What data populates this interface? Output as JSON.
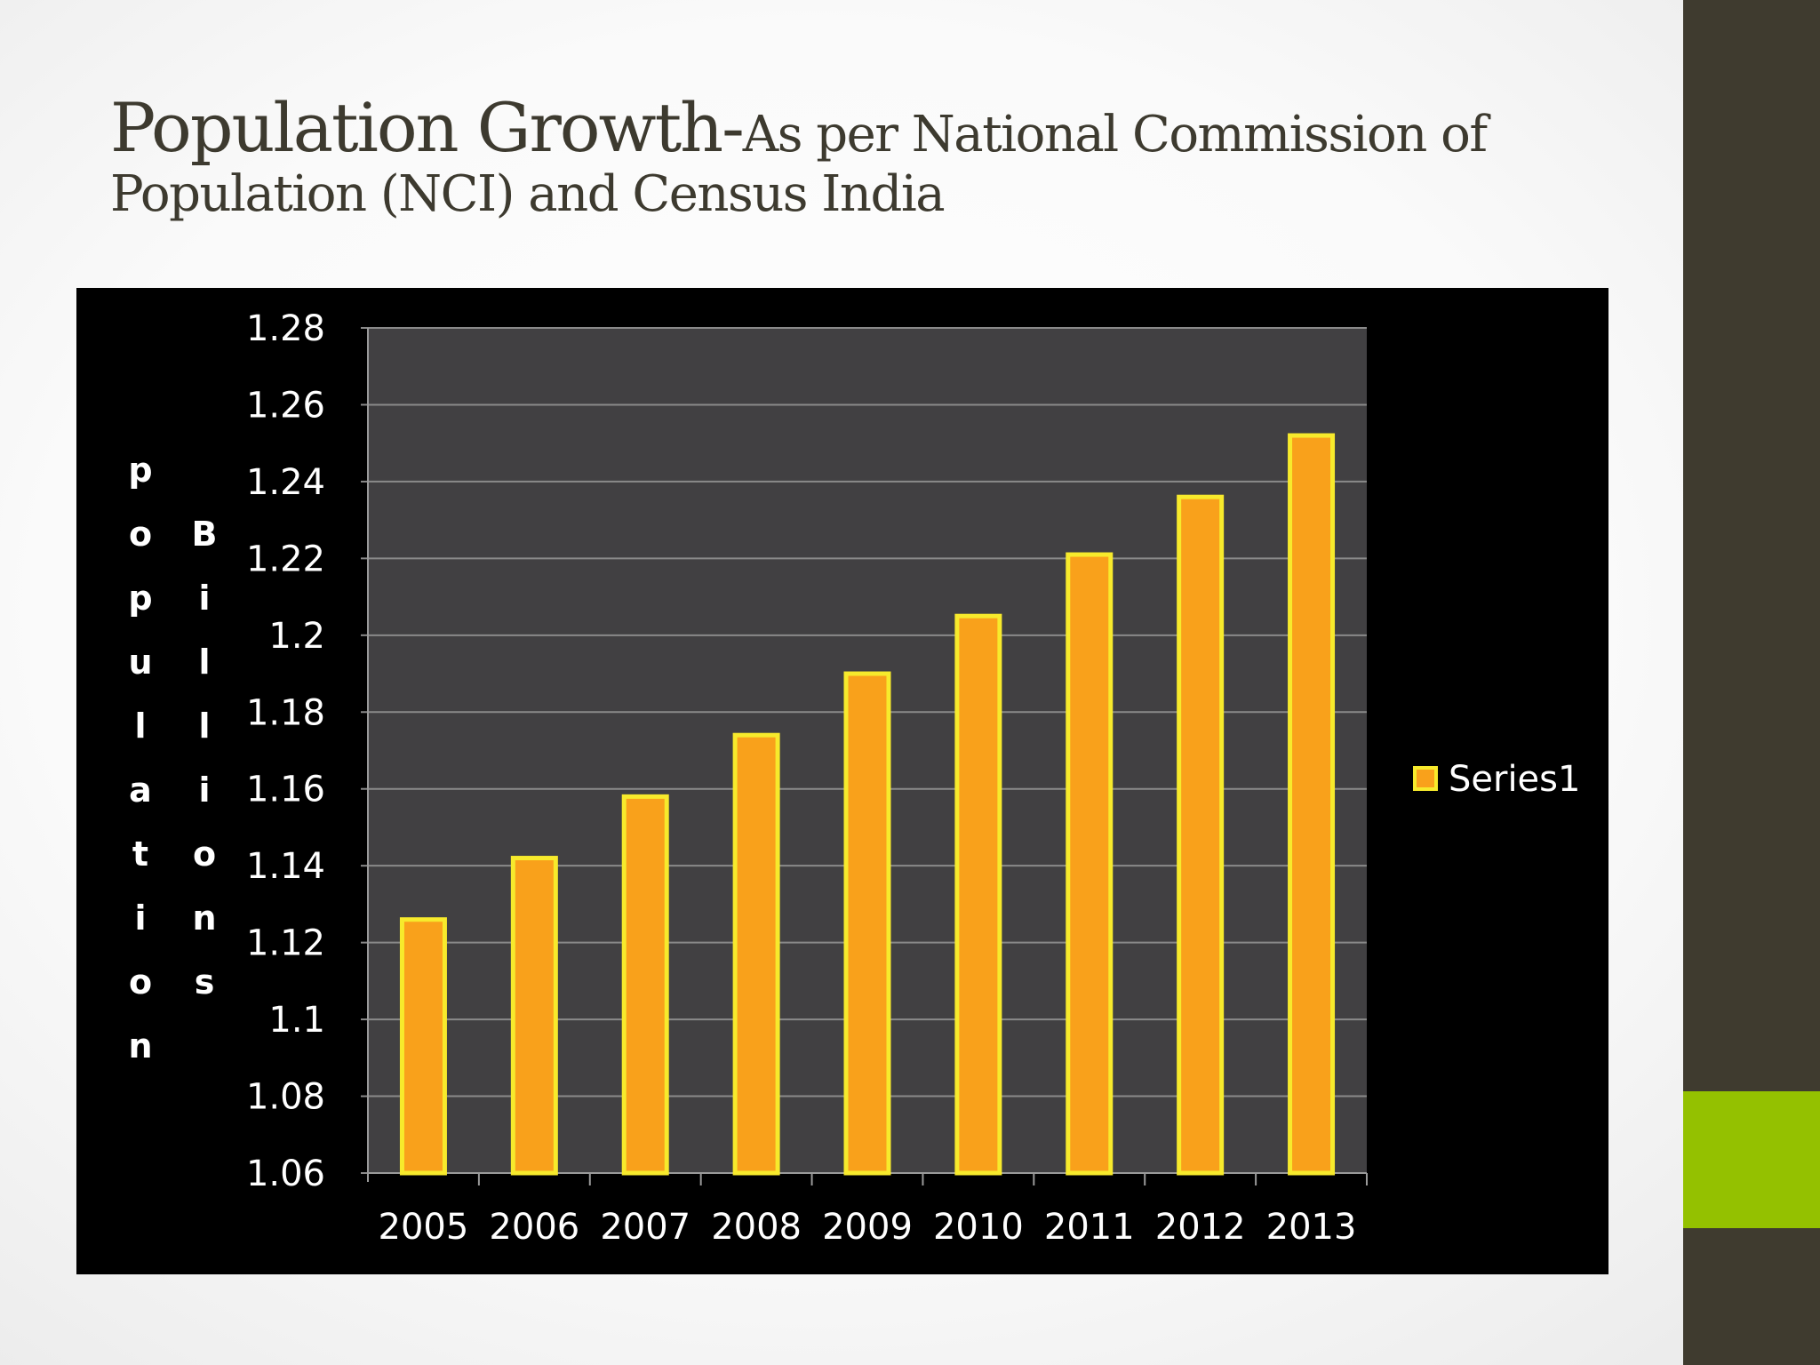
{
  "slide": {
    "title_main": "Population Growth-",
    "title_sub_line1": "As per National Commission of",
    "title_sub_line2": "Population (NCI) and Census India"
  },
  "colors": {
    "side_bar": "#3f3b2f",
    "side_accent": "#94c100",
    "plot_bg": "#414042",
    "bar_fill": "#f9a11b",
    "bar_edge": "#f7ea2c"
  },
  "chart_data": {
    "type": "bar",
    "title": "",
    "xlabel": "",
    "ylabel_left": "population",
    "ylabel_right": "Billions",
    "categories": [
      "2005",
      "2006",
      "2007",
      "2008",
      "2009",
      "2010",
      "2011",
      "2012",
      "2013"
    ],
    "series": [
      {
        "name": "Series1",
        "values": [
          1.126,
          1.142,
          1.158,
          1.174,
          1.19,
          1.205,
          1.221,
          1.236,
          1.252
        ]
      }
    ],
    "ylim": [
      1.06,
      1.28
    ],
    "yticks": [
      "1.28",
      "1.26",
      "1.24",
      "1.22",
      "1.2",
      "1.18",
      "1.16",
      "1.14",
      "1.12",
      "1.1",
      "1.08",
      "1.06"
    ],
    "grid": true,
    "legend_position": "right"
  }
}
